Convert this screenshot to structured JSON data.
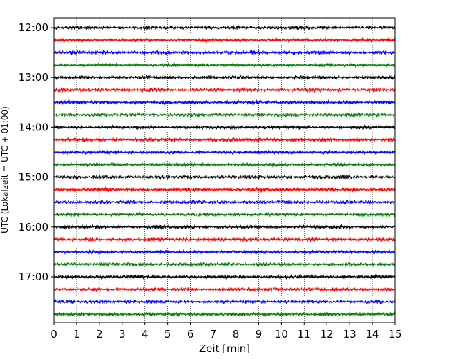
{
  "chart_data": {
    "type": "line",
    "title": "",
    "xlabel": "Zeit  [min]",
    "ylabel": "UTC (Lokalzeit = UTC + 01:00)",
    "xlim": [
      0,
      15
    ],
    "x_ticks": [
      "0",
      "1",
      "2",
      "3",
      "4",
      "5",
      "6",
      "7",
      "8",
      "9",
      "10",
      "11",
      "12",
      "13",
      "14",
      "15"
    ],
    "y_tick_labels": [
      "12:00",
      "13:00",
      "14:00",
      "15:00",
      "16:00",
      "17:00"
    ],
    "grid": "vertical dotted lines at each minute",
    "colors": [
      "#000000",
      "#ff0000",
      "#0000ff",
      "#008000"
    ],
    "trace_start_times": [
      "12:00",
      "12:15",
      "12:30",
      "12:45",
      "13:00",
      "13:15",
      "13:30",
      "13:45",
      "14:00",
      "14:15",
      "14:30",
      "14:45",
      "15:00",
      "15:15",
      "15:30",
      "15:45",
      "16:00",
      "16:15",
      "16:30",
      "16:45",
      "17:00",
      "17:15",
      "17:30",
      "17:45"
    ],
    "trace_minutes": 15,
    "amplitude_note": "traces show low-amplitude seismic noise around each baseline"
  }
}
